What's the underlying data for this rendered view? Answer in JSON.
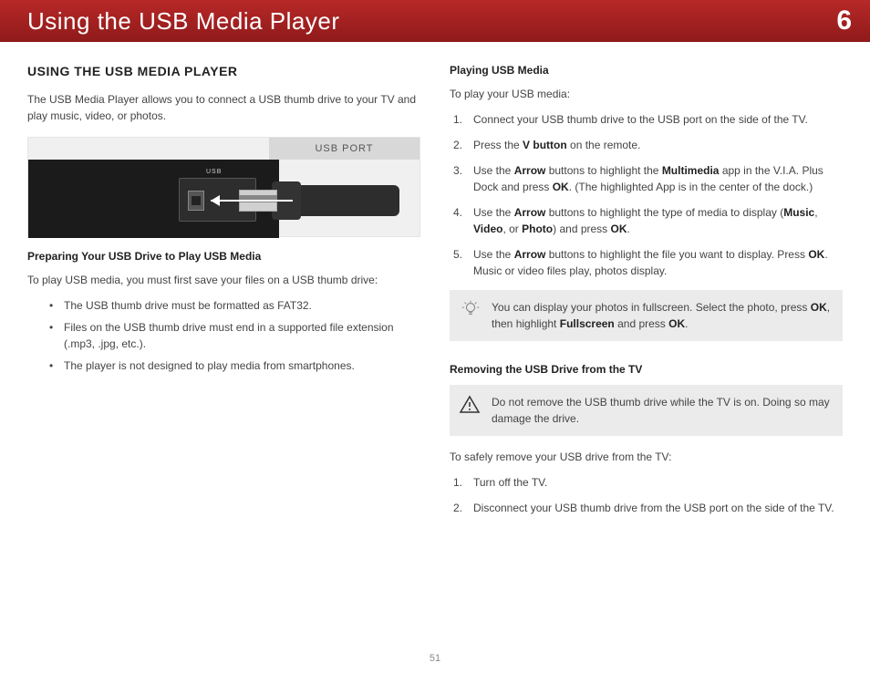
{
  "header": {
    "title": "Using the USB Media Player",
    "chapter": "6"
  },
  "left": {
    "heading": "USING THE USB MEDIA PLAYER",
    "intro": "The USB Media Player allows you to connect a USB thumb drive to your TV and play music, video, or photos.",
    "usb_label": "USB PORT",
    "usb_tag": "USB",
    "prep_heading": "Preparing Your USB Drive to Play USB Media",
    "prep_intro": "To play USB media, you must first save your files on a USB thumb drive:",
    "bullets": [
      "The USB thumb drive must be formatted as FAT32.",
      "Files on the USB thumb drive must end in a supported file extension (.mp3, .jpg, etc.).",
      "The player is not designed to play media from smartphones."
    ]
  },
  "right": {
    "play_heading": "Playing USB Media",
    "play_intro": "To play your USB media:",
    "steps": [
      {
        "n": "1.",
        "html": "Connect your USB thumb drive to the USB port on the side of the TV."
      },
      {
        "n": "2.",
        "html": "Press the <b>V button</b> on the remote."
      },
      {
        "n": "3.",
        "html": "Use the <b>Arrow</b> buttons to highlight the <b>Multimedia</b> app in the V.I.A. Plus Dock and press <b>OK</b>. (The highlighted App is in the center of the dock.)"
      },
      {
        "n": "4.",
        "html": "Use the <b>Arrow</b> buttons to highlight the type of media to display (<b>Music</b>, <b>Video</b>, or <b>Photo</b>) and press <b>OK</b>."
      },
      {
        "n": "5.",
        "html": "Use the <b>Arrow</b> buttons to highlight the file you want to display. Press <b>OK</b>. Music or video files play, photos display."
      }
    ],
    "tip": "You can display your photos in fullscreen. Select the photo, press <b>OK</b>, then highlight <b>Fullscreen</b> and press <b>OK</b>.",
    "remove_heading": "Removing the USB Drive from the TV",
    "warn": "Do not remove the USB thumb drive while the TV is on. Doing so may damage the drive.",
    "remove_intro": "To safely remove your USB drive from the TV:",
    "remove_steps": [
      {
        "n": "1.",
        "html": "Turn off the TV."
      },
      {
        "n": "2.",
        "html": "Disconnect your USB thumb drive from the USB port on the side of the TV."
      }
    ]
  },
  "page": "51",
  "colors": {
    "header_bg": "#a01e1e",
    "tip_bg": "#ebebeb"
  }
}
